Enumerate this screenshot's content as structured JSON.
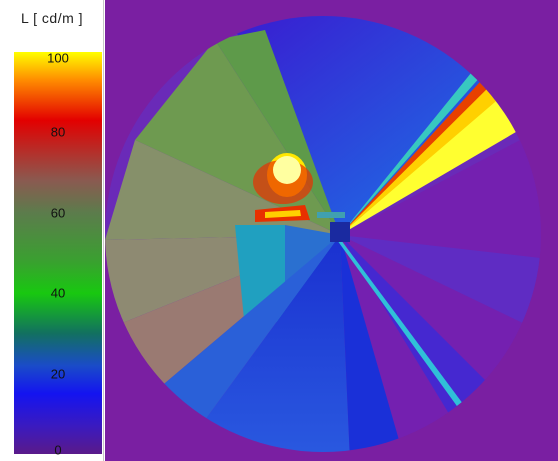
{
  "legend": {
    "title": "L [ cd/m ]",
    "ticks": [
      {
        "value": 100,
        "label": "100"
      },
      {
        "value": 80,
        "label": "80"
      },
      {
        "value": 60,
        "label": "60"
      },
      {
        "value": 40,
        "label": "40"
      },
      {
        "value": 20,
        "label": "20"
      },
      {
        "value": 0,
        "label": "0"
      }
    ],
    "scale_min": 0,
    "scale_max": 100
  },
  "colors": {
    "background": "#7a1fa2",
    "scale_top": "#ffff00",
    "scale_red": "#e00000",
    "scale_green": "#16c800",
    "scale_blue": "#1a3cf0",
    "scale_bottom": "#5a1a8a"
  }
}
